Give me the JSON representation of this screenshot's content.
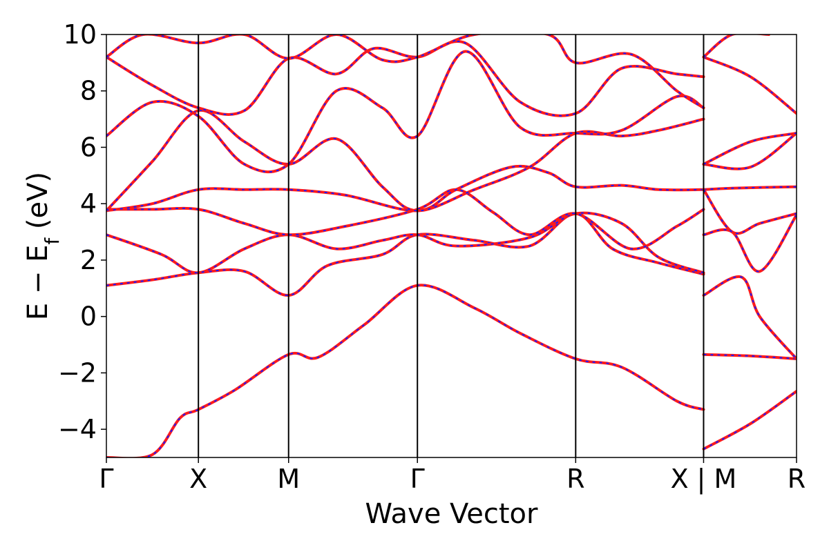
{
  "chart_data": {
    "type": "line",
    "xlabel": "Wave Vector",
    "ylabel_parts": {
      "main": "E − E",
      "sub": "f",
      "unit": " (eV)"
    },
    "ylim": [
      -5,
      10
    ],
    "yticks": [
      -4,
      -2,
      0,
      2,
      4,
      6,
      8,
      10
    ],
    "ytick_labels": [
      "−4",
      "−2",
      "0",
      "2",
      "4",
      "6",
      "8",
      "10"
    ],
    "x_range": [
      0,
      7.5
    ],
    "kpoints": [
      {
        "label": "Γ",
        "x": 0
      },
      {
        "label": "X",
        "x": 1.0
      },
      {
        "label": "M",
        "x": 1.98
      },
      {
        "label": "Γ",
        "x": 3.38
      },
      {
        "label": "R",
        "x": 5.1
      },
      {
        "label": "X | M",
        "x": 6.49
      },
      {
        "label": "R",
        "x": 7.5
      }
    ],
    "grid": false,
    "legend": "none",
    "colors": {
      "band_main": "#ff1a1a",
      "band_dash": "#1a1aff",
      "divider": "#000000"
    },
    "bands": [
      [
        [
          0,
          -5
        ],
        [
          0.5,
          -4.9
        ],
        [
          0.8,
          -3.6
        ],
        [
          1.0,
          -3.3
        ],
        [
          1.4,
          -2.6
        ],
        [
          1.98,
          -1.35
        ],
        [
          2.3,
          -1.45
        ],
        [
          2.8,
          -0.3
        ],
        [
          3.38,
          1.1
        ],
        [
          4.0,
          0.3
        ],
        [
          4.5,
          -0.6
        ],
        [
          5.1,
          -1.5
        ],
        [
          5.6,
          -1.8
        ],
        [
          6.2,
          -3.0
        ],
        [
          6.49,
          -3.3
        ]
      ],
      [
        [
          0,
          1.1
        ],
        [
          0.5,
          1.3
        ],
        [
          1.0,
          1.55
        ],
        [
          1.5,
          1.6
        ],
        [
          1.98,
          0.75
        ],
        [
          2.4,
          1.8
        ],
        [
          3.0,
          2.2
        ],
        [
          3.38,
          2.9
        ],
        [
          4.0,
          2.7
        ],
        [
          4.6,
          2.5
        ],
        [
          5.1,
          3.65
        ],
        [
          5.5,
          2.4
        ],
        [
          6.0,
          1.9
        ],
        [
          6.49,
          1.5
        ]
      ],
      [
        [
          0,
          2.9
        ],
        [
          0.6,
          2.2
        ],
        [
          1.0,
          1.55
        ],
        [
          1.5,
          2.4
        ],
        [
          1.98,
          2.9
        ],
        [
          2.5,
          2.4
        ],
        [
          3.0,
          2.7
        ],
        [
          3.38,
          2.9
        ],
        [
          3.8,
          2.5
        ],
        [
          4.6,
          2.8
        ],
        [
          5.1,
          3.65
        ],
        [
          5.6,
          3.3
        ],
        [
          6.0,
          2.1
        ],
        [
          6.49,
          1.55
        ]
      ],
      [
        [
          0,
          3.8
        ],
        [
          0.5,
          3.8
        ],
        [
          1.0,
          3.8
        ],
        [
          1.5,
          3.3
        ],
        [
          1.98,
          2.9
        ],
        [
          2.6,
          3.2
        ],
        [
          3.38,
          3.8
        ],
        [
          3.8,
          4.5
        ],
        [
          4.2,
          3.7
        ],
        [
          4.6,
          2.9
        ],
        [
          5.1,
          3.65
        ],
        [
          5.7,
          2.4
        ],
        [
          6.2,
          3.2
        ],
        [
          6.49,
          3.8
        ]
      ],
      [
        [
          0,
          3.75
        ],
        [
          0.5,
          4.0
        ],
        [
          1.0,
          4.5
        ],
        [
          1.5,
          4.5
        ],
        [
          1.98,
          4.5
        ],
        [
          2.6,
          4.3
        ],
        [
          3.38,
          3.75
        ],
        [
          3.8,
          4.5
        ],
        [
          4.4,
          5.3
        ],
        [
          4.8,
          5.1
        ],
        [
          5.1,
          4.6
        ],
        [
          5.6,
          4.65
        ],
        [
          6.0,
          4.5
        ],
        [
          6.49,
          4.5
        ]
      ],
      [
        [
          0,
          3.75
        ],
        [
          0.5,
          5.5
        ],
        [
          1.0,
          7.3
        ],
        [
          1.5,
          6.2
        ],
        [
          1.98,
          5.4
        ],
        [
          2.5,
          6.3
        ],
        [
          3.0,
          4.6
        ],
        [
          3.38,
          3.75
        ],
        [
          4.0,
          4.5
        ],
        [
          4.6,
          5.3
        ],
        [
          5.1,
          6.5
        ],
        [
          5.6,
          6.4
        ],
        [
          6.0,
          6.6
        ],
        [
          6.49,
          7.0
        ]
      ],
      [
        [
          0,
          6.4
        ],
        [
          0.5,
          7.6
        ],
        [
          1.0,
          7.1
        ],
        [
          1.5,
          5.4
        ],
        [
          1.98,
          5.4
        ],
        [
          2.5,
          8.0
        ],
        [
          3.0,
          7.4
        ],
        [
          3.38,
          6.4
        ],
        [
          3.9,
          9.4
        ],
        [
          4.5,
          6.7
        ],
        [
          5.1,
          6.5
        ],
        [
          5.6,
          6.6
        ],
        [
          6.2,
          7.8
        ],
        [
          6.49,
          7.4
        ]
      ],
      [
        [
          0,
          9.2
        ],
        [
          0.5,
          8.2
        ],
        [
          1.0,
          7.4
        ],
        [
          1.5,
          7.3
        ],
        [
          1.98,
          9.15
        ],
        [
          2.5,
          8.6
        ],
        [
          2.9,
          9.5
        ],
        [
          3.38,
          9.2
        ],
        [
          3.9,
          9.7
        ],
        [
          4.5,
          7.6
        ],
        [
          5.1,
          7.2
        ],
        [
          5.6,
          8.8
        ],
        [
          6.2,
          8.6
        ],
        [
          6.49,
          8.5
        ]
      ],
      [
        [
          0,
          9.2
        ],
        [
          0.4,
          10.0
        ],
        [
          1.0,
          9.7
        ],
        [
          1.5,
          10.0
        ],
        [
          1.98,
          9.15
        ],
        [
          2.5,
          10.0
        ],
        [
          3.0,
          9.1
        ],
        [
          3.38,
          9.2
        ],
        [
          4.0,
          10.0
        ],
        [
          4.8,
          10.0
        ],
        [
          5.1,
          9.0
        ],
        [
          5.7,
          9.3
        ],
        [
          6.2,
          8.0
        ],
        [
          6.49,
          7.4
        ]
      ],
      [
        [
          6.49,
          -4.7
        ],
        [
          7.0,
          -3.8
        ],
        [
          7.5,
          -2.65
        ]
      ],
      [
        [
          6.49,
          -1.35
        ],
        [
          7.0,
          -1.4
        ],
        [
          7.5,
          -1.5
        ]
      ],
      [
        [
          6.49,
          0.75
        ],
        [
          6.9,
          1.4
        ],
        [
          7.1,
          0.0
        ],
        [
          7.5,
          -1.5
        ]
      ],
      [
        [
          6.49,
          2.9
        ],
        [
          6.8,
          3.0
        ],
        [
          7.1,
          1.6
        ],
        [
          7.5,
          3.6
        ]
      ],
      [
        [
          6.49,
          4.5
        ],
        [
          6.8,
          4.55
        ],
        [
          7.5,
          4.6
        ]
      ],
      [
        [
          6.49,
          4.5
        ],
        [
          6.8,
          3.0
        ],
        [
          7.1,
          3.3
        ],
        [
          7.5,
          3.65
        ]
      ],
      [
        [
          6.49,
          5.4
        ],
        [
          7.0,
          5.3
        ],
        [
          7.5,
          6.5
        ]
      ],
      [
        [
          6.49,
          5.4
        ],
        [
          7.0,
          6.2
        ],
        [
          7.5,
          6.5
        ]
      ],
      [
        [
          6.49,
          9.2
        ],
        [
          7.0,
          8.5
        ],
        [
          7.5,
          7.2
        ]
      ],
      [
        [
          6.49,
          9.2
        ],
        [
          6.8,
          10.0
        ],
        [
          7.2,
          10.0
        ]
      ]
    ]
  }
}
